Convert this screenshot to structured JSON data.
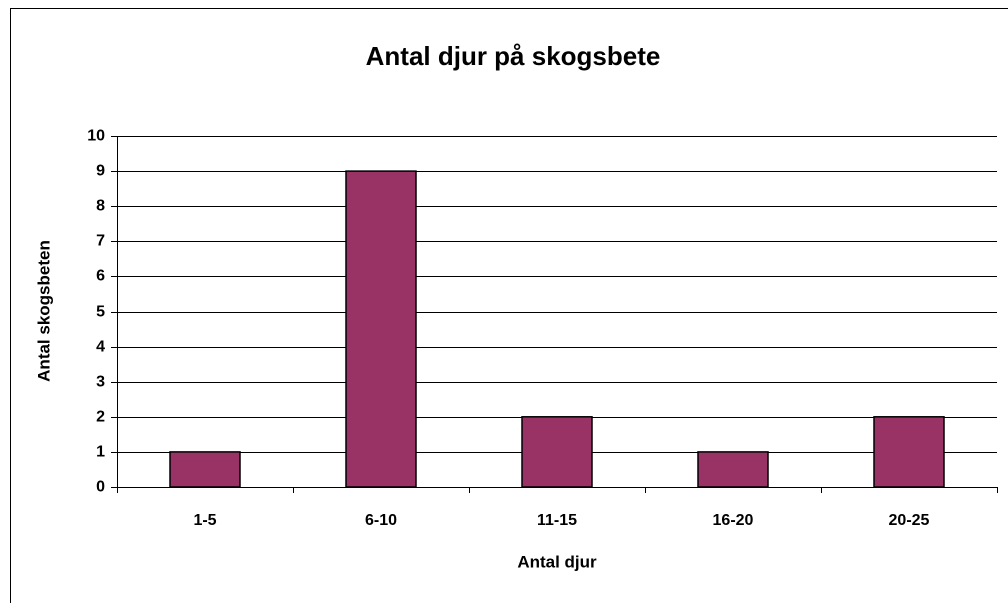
{
  "chart_data": {
    "type": "bar",
    "title": "Antal djur på skogsbete",
    "x_label": "Antal djur",
    "y_label": "Antal skogsbeten",
    "categories": [
      "1-5",
      "6-10",
      "11-15",
      "16-20",
      "20-25"
    ],
    "values": [
      1,
      9,
      2,
      1,
      2
    ],
    "color": "#993366",
    "ylim": [
      0,
      10
    ],
    "yticks": [
      0,
      1,
      2,
      3,
      4,
      5,
      6,
      7,
      8,
      9,
      10
    ],
    "grid": true
  }
}
